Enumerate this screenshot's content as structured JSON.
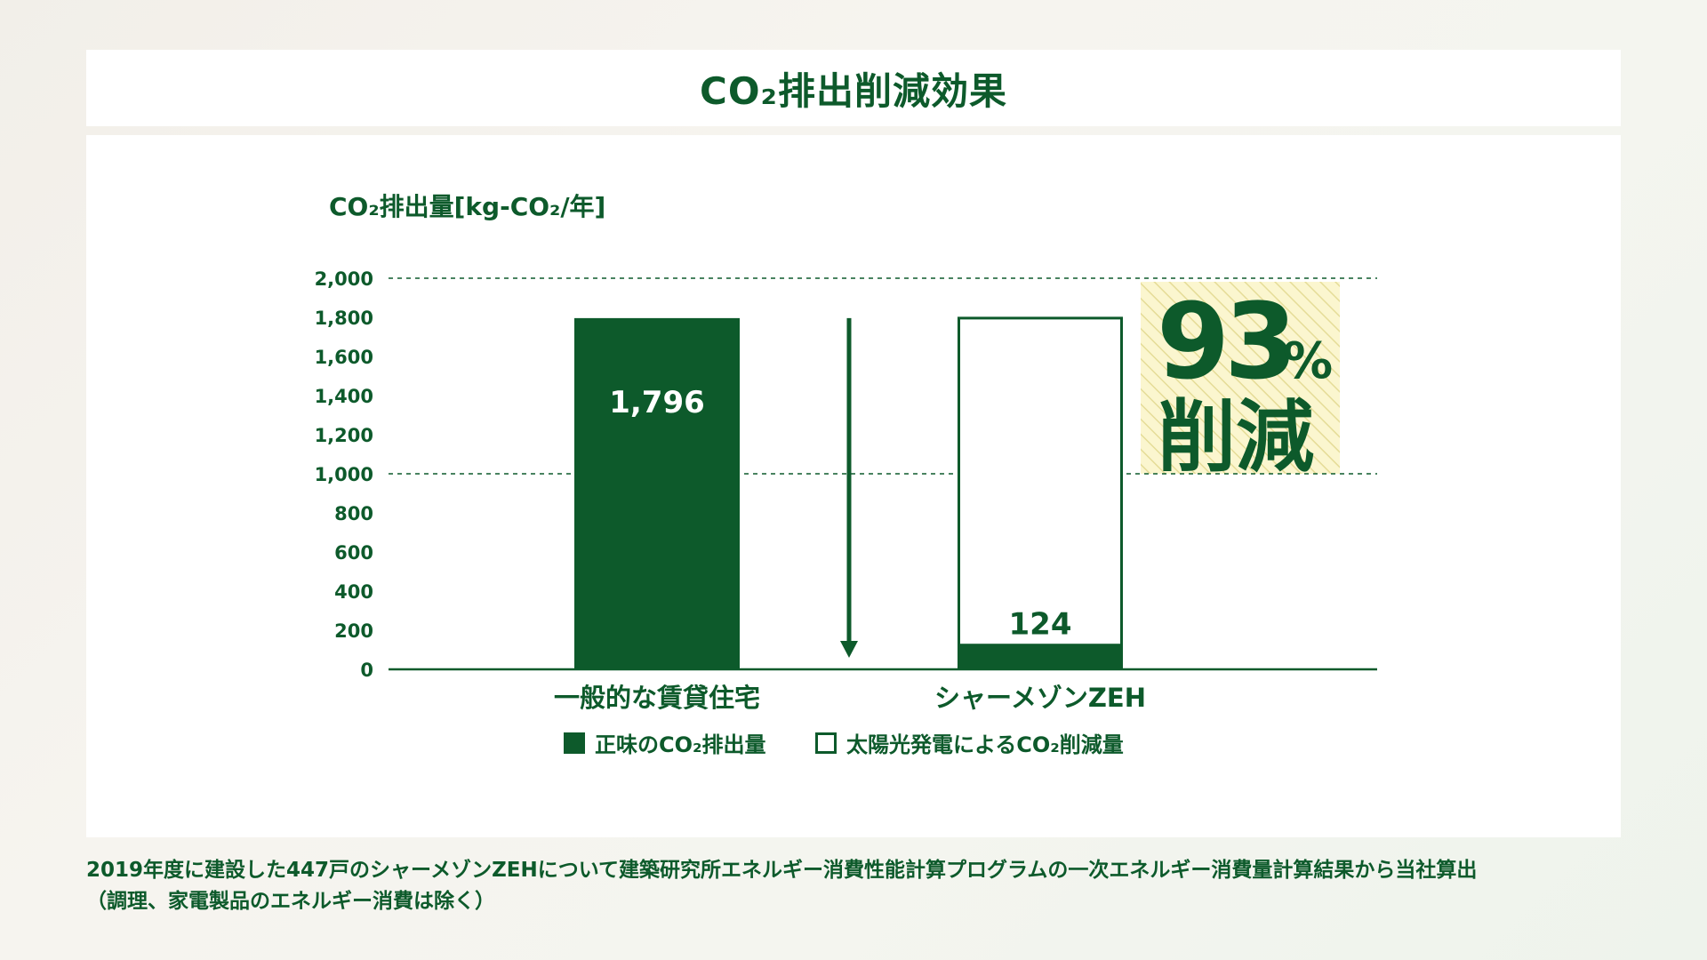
{
  "header": {
    "title": "CO₂排出削減効果"
  },
  "chart_data": {
    "type": "bar",
    "ylabel": "CO₂排出量[kg-CO₂/年]",
    "ylim": [
      0,
      2000
    ],
    "yticks": [
      "2,000",
      "1,800",
      "1,600",
      "1,400",
      "1,200",
      "1,000",
      "800",
      "600",
      "400",
      "200",
      "0"
    ],
    "ytick_values": [
      2000,
      1800,
      1600,
      1400,
      1200,
      1000,
      800,
      600,
      400,
      200,
      0
    ],
    "dashed_gridlines": [
      2000,
      1000
    ],
    "categories": [
      "一般的な賃貸住宅",
      "シャーメゾンZEH"
    ],
    "series": [
      {
        "name": "正味のCO₂排出量",
        "values": [
          1796,
          124
        ],
        "color": "#0d5a2b"
      },
      {
        "name": "太陽光発電によるCO₂削減量",
        "values": [
          0,
          1672
        ],
        "color": "#ffffff"
      }
    ],
    "bar_labels": [
      "1,796",
      "124"
    ],
    "annotation": {
      "value": "93",
      "unit": "%",
      "text": "削減"
    }
  },
  "legend": [
    {
      "label": "正味のCO₂排出量",
      "swatch": "filled"
    },
    {
      "label": "太陽光発電によるCO₂削減量",
      "swatch": "outline"
    }
  ],
  "footnote": {
    "line1": "2019年度に建設した447戸のシャーメゾンZEHについて建築研究所エネルギー消費性能計算プログラムの一次エネルギー消費量計算結果から当社算出",
    "line2": "（調理、家電製品のエネルギー消費は除く）"
  },
  "colors": {
    "primary": "#0d5a2b",
    "highlight_bg": "#fbf6cf",
    "highlight_stripe": "#e5dc97"
  }
}
